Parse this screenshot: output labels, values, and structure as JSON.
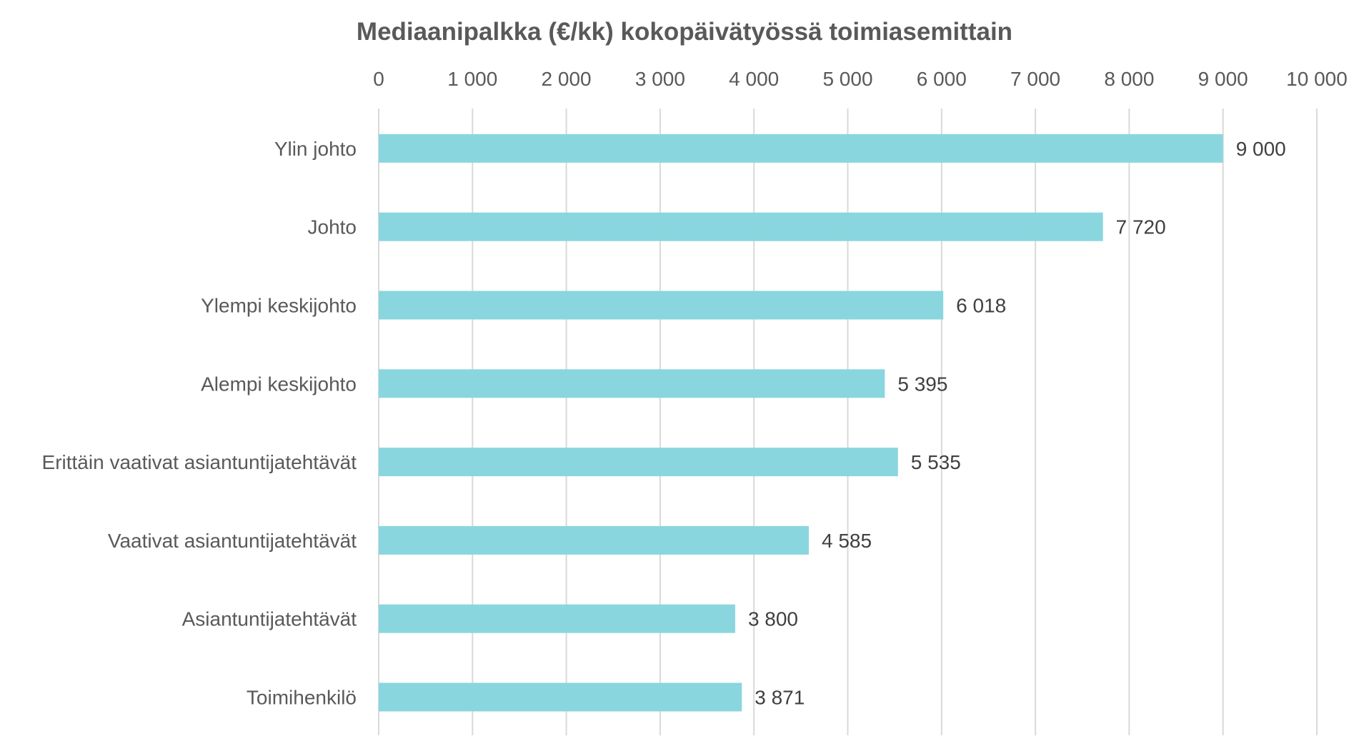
{
  "chart_data": {
    "type": "bar",
    "orientation": "horizontal",
    "title": "Mediaanipalkka (€/kk) kokopäivätyössä toimiasemittain",
    "categories": [
      "Ylin johto",
      "Johto",
      "Ylempi keskijohto",
      "Alempi keskijohto",
      "Erittäin vaativat asiantuntijatehtävät",
      "Vaativat asiantuntijatehtävät",
      "Asiantuntijatehtävät",
      "Toimihenkilö"
    ],
    "values": [
      9000,
      7720,
      6018,
      5395,
      5535,
      4585,
      3800,
      3871
    ],
    "data_labels": [
      "9 000",
      "7 720",
      "6 018",
      "5 395",
      "5 535",
      "4 585",
      "3 800",
      "3 871"
    ],
    "x_axis_position": "top",
    "xlim": [
      0,
      10000
    ],
    "x_ticks": [
      0,
      1000,
      2000,
      3000,
      4000,
      5000,
      6000,
      7000,
      8000,
      9000,
      10000
    ],
    "x_tick_labels": [
      "0",
      "1 000",
      "2 000",
      "3 000",
      "4 000",
      "5 000",
      "6 000",
      "7 000",
      "8 000",
      "9 000",
      "10 000"
    ],
    "grid": true,
    "legend": "none",
    "bar_color": "#8ad6df",
    "grid_color": "#d9d9d9",
    "text_color": "#595959"
  }
}
